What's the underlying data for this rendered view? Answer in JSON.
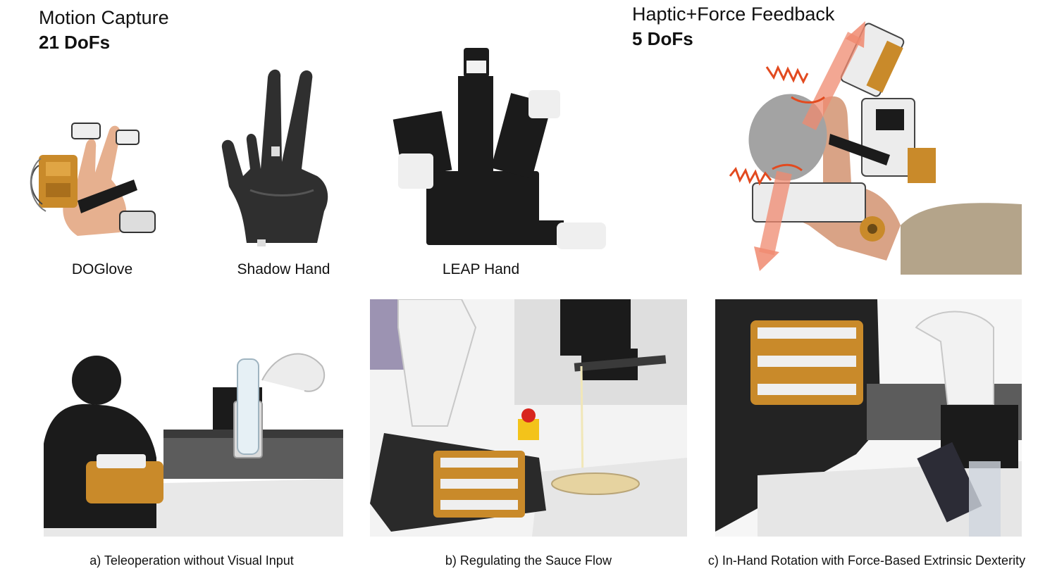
{
  "top_left": {
    "title": "Motion Capture",
    "subtitle": "21 DoFs"
  },
  "top_right": {
    "title": "Haptic+Force Feedback",
    "subtitle": "5 DoFs"
  },
  "hands": [
    {
      "label": "DOGlove"
    },
    {
      "label": "Shadow Hand"
    },
    {
      "label": "LEAP Hand"
    }
  ],
  "captions": [
    "a) Teleoperation without Visual Input",
    "b) Regulating the Sauce Flow",
    "c) In-Hand Rotation with Force-Based Extrinsic Dexterity"
  ],
  "colors": {
    "gold": "#c98a2a",
    "black_robot": "#1b1b1b",
    "shadow_hand": "#2f2f2f",
    "force_arrow": "#f08a70",
    "vibration": "#e24a1f",
    "object_gray": "#a3a3a3"
  }
}
